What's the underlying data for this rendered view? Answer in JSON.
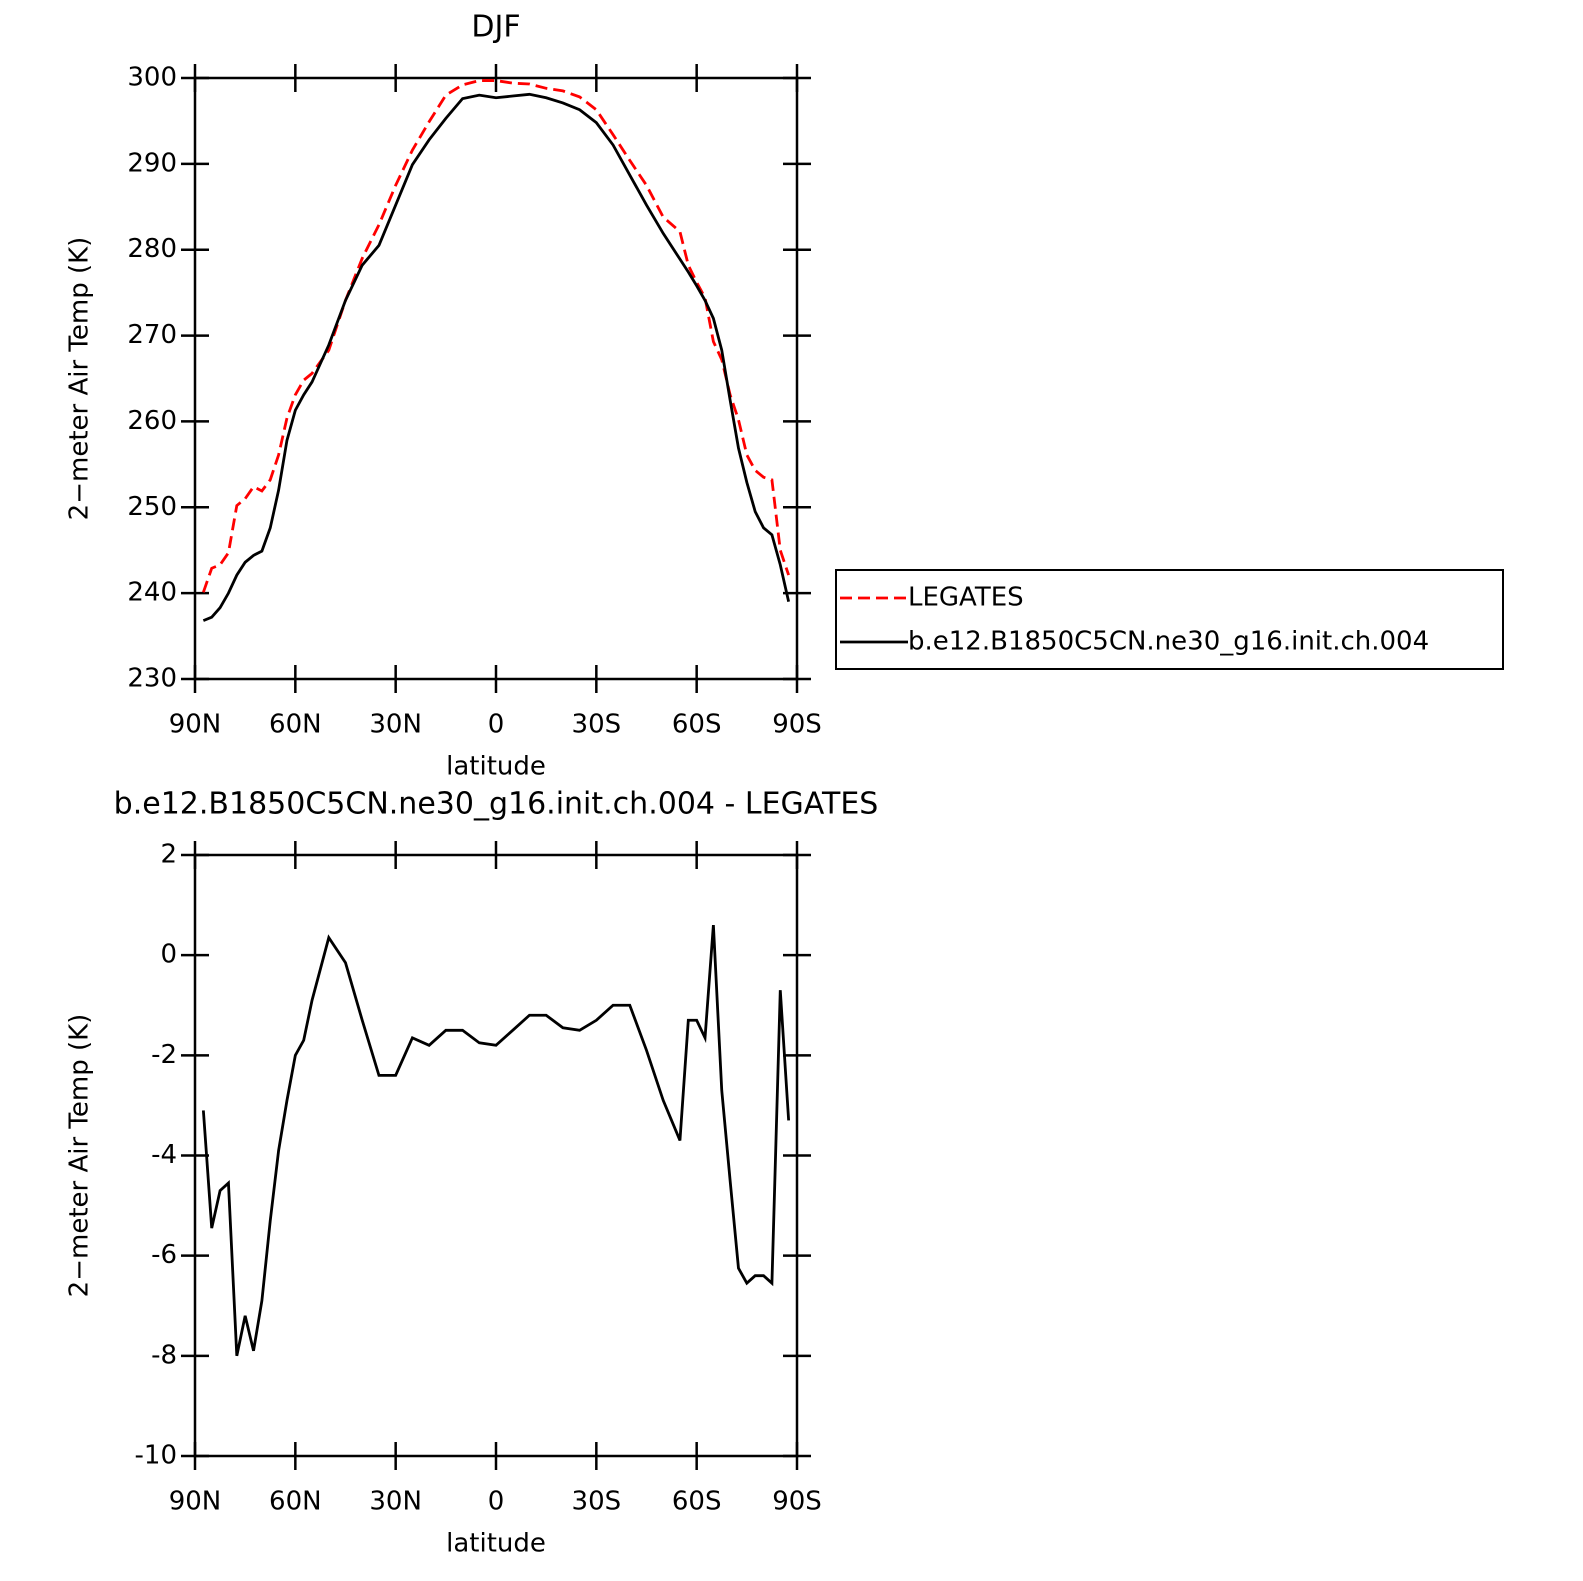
{
  "chart_data": [
    {
      "type": "line",
      "title": "DJF",
      "xlabel": "latitude",
      "ylabel": "2−meter Air Temp (K)",
      "x": [
        87.5,
        85,
        82.5,
        80,
        77.5,
        75,
        72.5,
        70,
        67.5,
        65,
        62.5,
        60,
        57.5,
        55,
        50,
        45,
        40,
        35,
        30,
        25,
        20,
        15,
        10,
        5,
        0,
        -5,
        -10,
        -15,
        -20,
        -25,
        -30,
        -35,
        -40,
        -45,
        -50,
        -55,
        -57.5,
        -60,
        -62.5,
        -65,
        -67.5,
        -70,
        -72.5,
        -75,
        -77.5,
        -80,
        -82.5,
        -85,
        -87.5
      ],
      "series": [
        {
          "name": "LEGATES",
          "color": "#ff0000",
          "line_style": "dashed",
          "values": [
            240.1,
            242.9,
            243.3,
            244.7,
            250.2,
            251.0,
            252.4,
            251.9,
            253.2,
            256.1,
            260.4,
            263.1,
            264.8,
            265.6,
            268.3,
            274.1,
            279.0,
            282.9,
            287.5,
            291.6,
            294.9,
            298.0,
            299.2,
            299.7,
            299.7,
            299.4,
            299.3,
            298.8,
            298.5,
            297.8,
            296.3,
            293.4,
            290.4,
            287.5,
            283.8,
            282.1,
            278.2,
            276.2,
            274.4,
            269.3,
            267.2,
            263.1,
            260.2,
            256.1,
            254.3,
            253.5,
            253.2,
            245.0,
            242.1
          ]
        },
        {
          "name": "b.e12.B1850C5CN.ne30_g16.init.ch.004",
          "color": "#000000",
          "line_style": "solid",
          "values": [
            236.8,
            237.2,
            238.3,
            240.0,
            242.1,
            243.6,
            244.4,
            244.9,
            247.6,
            252.0,
            257.8,
            261.3,
            263.1,
            264.6,
            268.9,
            274.1,
            278.2,
            280.5,
            285.2,
            289.9,
            292.8,
            295.3,
            297.6,
            298.0,
            297.7,
            297.9,
            298.1,
            297.7,
            297.1,
            296.3,
            294.8,
            292.2,
            288.7,
            285.2,
            281.9,
            278.9,
            277.4,
            275.8,
            274.1,
            272.0,
            268.3,
            262.5,
            256.9,
            252.9,
            249.5,
            247.6,
            246.8,
            243.3,
            239.0
          ]
        }
      ],
      "xlim": [
        90,
        -90
      ],
      "xticks": [
        {
          "value": 90,
          "label": "90N"
        },
        {
          "value": 60,
          "label": "60N"
        },
        {
          "value": 30,
          "label": "30N"
        },
        0,
        {
          "value": -30,
          "label": "30S"
        },
        {
          "value": -60,
          "label": "60S"
        },
        {
          "value": -90,
          "label": "90S"
        }
      ],
      "ylim": [
        230,
        300
      ],
      "yticks": [
        230,
        240,
        250,
        260,
        270,
        280,
        290,
        300
      ],
      "legend": "right"
    },
    {
      "type": "line",
      "title": "b.e12.B1850C5CN.ne30_g16.init.ch.004 - LEGATES",
      "xlabel": "latitude",
      "ylabel": "2−meter Air Temp (K)",
      "x": [
        87.5,
        85,
        82.5,
        80,
        77.5,
        75,
        72.5,
        70,
        67.5,
        65,
        62.5,
        60,
        57.5,
        55,
        50,
        45,
        40,
        35,
        30,
        25,
        20,
        15,
        10,
        5,
        0,
        -5,
        -10,
        -15,
        -20,
        -25,
        -30,
        -35,
        -40,
        -45,
        -50,
        -55,
        -57.5,
        -60,
        -62.5,
        -65,
        -67.5,
        -70,
        -72.5,
        -75,
        -77.5,
        -80,
        -82.5,
        -85,
        -87.5
      ],
      "series": [
        {
          "color": "#000000",
          "line_style": "solid",
          "values": [
            -3.1,
            -5.45,
            -4.7,
            -4.55,
            -8.0,
            -7.2,
            -7.9,
            -6.9,
            -5.3,
            -3.9,
            -2.9,
            -2.0,
            -1.7,
            -0.9,
            0.35,
            -0.15,
            -1.3,
            -2.4,
            -2.4,
            -1.65,
            -1.8,
            -1.5,
            -1.5,
            -1.75,
            -1.8,
            -1.5,
            -1.2,
            -1.2,
            -1.45,
            -1.5,
            -1.3,
            -1.0,
            -1.0,
            -1.9,
            -2.9,
            -3.7,
            -1.3,
            -1.3,
            -1.65,
            0.6,
            -2.7,
            -4.5,
            -6.25,
            -6.55,
            -6.4,
            -6.4,
            -6.55,
            -0.7,
            -3.3
          ]
        }
      ],
      "xlim": [
        90,
        -90
      ],
      "xticks": [
        {
          "value": 90,
          "label": "90N"
        },
        {
          "value": 60,
          "label": "60N"
        },
        {
          "value": 30,
          "label": "30N"
        },
        0,
        {
          "value": -30,
          "label": "30S"
        },
        {
          "value": -60,
          "label": "60S"
        },
        {
          "value": -90,
          "label": "90S"
        }
      ],
      "ylim": [
        -10,
        2
      ],
      "yticks": [
        -10,
        -8,
        -6,
        -4,
        -2,
        0,
        2
      ]
    }
  ]
}
